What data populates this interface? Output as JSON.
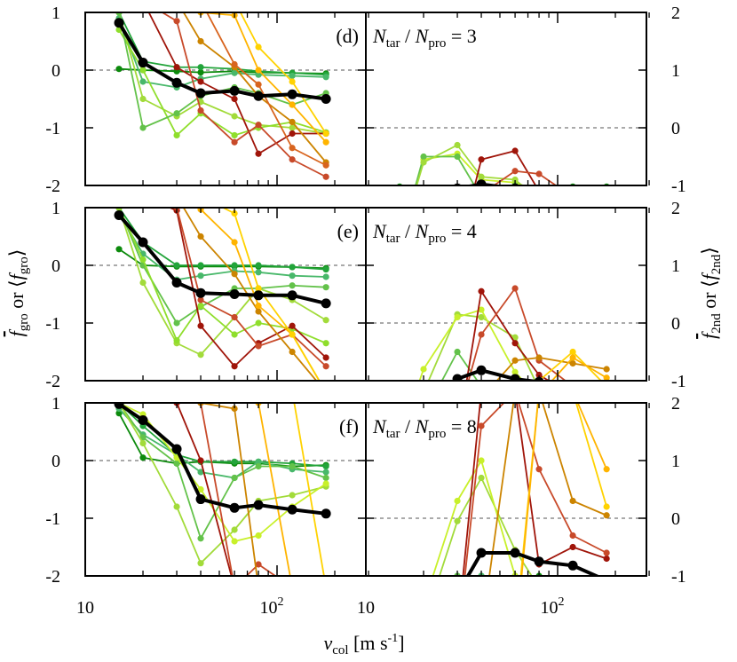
{
  "chart_data": {
    "type": "line",
    "xaxis": {
      "label_main": "v",
      "label_sub": "col",
      "label_unit": "[m s",
      "label_exp": "-1",
      "label_close": "]",
      "scale": "log",
      "range": [
        10,
        300
      ],
      "ticks": [
        {
          "value": 10,
          "label": "10"
        },
        {
          "value": 100,
          "label": "10",
          "exp": "2"
        }
      ]
    },
    "ylabel_left": {
      "f": "f",
      "sub1": "gro",
      "mid": " or ⟨",
      "f2": "f",
      "sub2": "gro",
      "close": "⟩"
    },
    "ylabel_right": {
      "f": "f",
      "sub1": "2nd",
      "mid": " or ⟨",
      "f2": "f",
      "sub2": "2nd",
      "close": "⟩"
    },
    "yleft": {
      "range": [
        -2,
        1
      ],
      "ticks": [
        "1",
        "0",
        "-1",
        "-2"
      ]
    },
    "yright": {
      "range": [
        -1,
        2
      ],
      "ticks": [
        "2",
        "1",
        "0",
        "-1"
      ]
    },
    "velocities": [
      15,
      20,
      30,
      40,
      60,
      80,
      120,
      180
    ],
    "colors": [
      "#0c8a0c",
      "#22a43a",
      "#48b86a",
      "#63c24a",
      "#a2db3a",
      "#8fde2c",
      "#c8f02a",
      "#9b8a2a",
      "#ffb400",
      "#ffd200",
      "#e88a1e",
      "#cc8400",
      "#d8641e",
      "#c84a2a",
      "#a0150a",
      "#b21818"
    ],
    "panels": [
      {
        "letter": "(d)",
        "ratio": "3",
        "eq_N": "N",
        "eq_tar": "tar",
        "eq_sep": " / ",
        "eq_pro": "pro",
        "eq_val": " = ",
        "left_mean": [
          0.82,
          0.13,
          -0.22,
          -0.4,
          -0.36,
          -0.45,
          -0.42,
          -0.5
        ],
        "left_series": [
          {
            "c": 0,
            "v": [
              0.02,
              0.0,
              -0.02,
              -0.04,
              -0.02,
              -0.04,
              -0.05,
              -0.06
            ]
          },
          {
            "c": 1,
            "v": [
              1.0,
              0.15,
              0.05,
              0.05,
              0.02,
              -0.02,
              -0.05,
              -0.08
            ]
          },
          {
            "c": 2,
            "v": [
              0.9,
              -0.2,
              -0.3,
              -0.15,
              -0.05,
              -0.08,
              -0.1,
              -0.12
            ]
          },
          {
            "c": 4,
            "v": [
              1.0,
              -0.5,
              -0.8,
              -0.55,
              -0.8,
              -0.95,
              -1.0,
              -1.1
            ]
          },
          {
            "c": 5,
            "v": [
              0.7,
              0.0,
              -1.13,
              -0.75,
              -1.13,
              -1.0,
              -0.9,
              -1.08
            ]
          },
          {
            "c": 3,
            "v": [
              1.0,
              -1.0,
              -0.75,
              -0.45,
              -0.3,
              -0.4,
              -0.6,
              -0.4
            ]
          },
          {
            "c": 14,
            "v": [
              1.2,
              1.2,
              0.05,
              -0.2,
              -0.5,
              -1.45,
              -1.1,
              -1.1
            ]
          },
          {
            "c": 13,
            "v": [
              1.2,
              1.2,
              0.85,
              -0.7,
              -1.25,
              -0.95,
              -1.55,
              -1.85
            ]
          },
          {
            "c": 11,
            "v": [
              1.2,
              1.2,
              1.2,
              0.5,
              0.05,
              -0.45,
              -0.9,
              -1.6
            ]
          },
          {
            "c": 8,
            "v": [
              1.2,
              1.2,
              1.2,
              1.0,
              0.95,
              0.0,
              -0.6,
              -1.25
            ]
          },
          {
            "c": 9,
            "v": [
              1.2,
              1.2,
              1.2,
              1.2,
              1.2,
              0.4,
              -0.2,
              -1.1
            ]
          },
          {
            "c": 12,
            "v": [
              1.2,
              1.2,
              1.2,
              1.2,
              0.1,
              -0.25,
              -1.35,
              -1.65
            ]
          }
        ],
        "right_mean": [
          -1.82,
          -1.3,
          -1.05,
          -0.98,
          -1.05,
          -1.08,
          -1.13,
          -1.25
        ],
        "right_series": [
          {
            "c": 0,
            "v": [
              -1.02,
              -1.08,
              -1.05,
              -1.02,
              -1.02,
              -1.05,
              -1.02,
              -1.02
            ]
          },
          {
            "c": 2,
            "v": [
              -1.95,
              -1.15,
              -1.1,
              -1.1,
              -1.1,
              -1.12,
              -1.1,
              -1.1
            ]
          },
          {
            "c": 6,
            "v": [
              -2.0,
              -0.55,
              -0.45,
              -0.9,
              -0.95,
              -1.1,
              -1.15,
              -1.2
            ]
          },
          {
            "c": 3,
            "v": [
              -2.0,
              -0.5,
              -0.5,
              -1.2,
              -1.0,
              -1.2,
              -1.3,
              -1.4
            ]
          },
          {
            "c": 4,
            "v": [
              -2.0,
              -0.6,
              -0.3,
              -0.85,
              -0.9,
              -1.25,
              -1.4,
              -1.6
            ]
          },
          {
            "c": 14,
            "v": [
              -2.2,
              -2.2,
              -2.2,
              -0.55,
              -0.4,
              -1.1,
              -1.5,
              -1.55
            ]
          },
          {
            "c": 13,
            "v": [
              -2.2,
              -2.2,
              -1.9,
              -1.15,
              -0.75,
              -0.8,
              -1.2,
              -1.6
            ]
          },
          {
            "c": 11,
            "v": [
              -2.2,
              -2.2,
              -2.0,
              -1.55,
              -1.35,
              -1.1,
              -1.15,
              -1.45
            ]
          },
          {
            "c": 9,
            "v": [
              -2.2,
              -2.2,
              -2.2,
              -2.0,
              -1.55,
              -1.4,
              -1.3,
              -1.55
            ]
          },
          {
            "c": 8,
            "v": [
              -2.2,
              -2.2,
              -2.2,
              -2.2,
              -1.85,
              -1.6,
              -1.45,
              -1.65
            ]
          }
        ]
      },
      {
        "letter": "(e)",
        "ratio": "4",
        "eq_N": "N",
        "eq_tar": "tar",
        "eq_sep": " / ",
        "eq_pro": "pro",
        "eq_val": " = ",
        "left_mean": [
          0.87,
          0.4,
          -0.3,
          -0.48,
          -0.5,
          -0.52,
          -0.52,
          -0.66
        ],
        "left_series": [
          {
            "c": 0,
            "v": [
              0.28,
              0.0,
              -0.02,
              -0.02,
              -0.02,
              -0.02,
              -0.03,
              -0.05
            ]
          },
          {
            "c": 1,
            "v": [
              1.0,
              0.4,
              0.0,
              0.0,
              0.0,
              0.0,
              -0.03,
              -0.07
            ]
          },
          {
            "c": 2,
            "v": [
              0.9,
              0.2,
              -0.25,
              -0.18,
              -0.1,
              -0.12,
              -0.18,
              -0.2
            ]
          },
          {
            "c": 3,
            "v": [
              1.0,
              0.0,
              -1.0,
              -0.72,
              -0.4,
              -0.4,
              -0.35,
              -0.38
            ]
          },
          {
            "c": 4,
            "v": [
              1.0,
              -0.3,
              -1.35,
              -1.55,
              -0.9,
              -0.4,
              -0.6,
              -0.95
            ]
          },
          {
            "c": 5,
            "v": [
              1.0,
              0.1,
              -1.3,
              -0.7,
              -1.2,
              -1.0,
              -1.1,
              -1.35
            ]
          },
          {
            "c": 14,
            "v": [
              1.2,
              1.2,
              0.95,
              -1.05,
              -1.75,
              -1.35,
              -1.05,
              -1.6
            ]
          },
          {
            "c": 13,
            "v": [
              1.2,
              1.2,
              1.0,
              -0.6,
              -0.9,
              -1.4,
              -1.2,
              -1.75
            ]
          },
          {
            "c": 11,
            "v": [
              1.2,
              1.2,
              1.2,
              0.5,
              -0.15,
              -0.8,
              -1.5,
              -2.2
            ]
          },
          {
            "c": 8,
            "v": [
              1.2,
              1.2,
              1.2,
              0.97,
              0.4,
              -0.7,
              -1.2,
              -2.2
            ]
          },
          {
            "c": 9,
            "v": [
              1.2,
              1.2,
              1.2,
              1.2,
              0.9,
              -0.4,
              -1.2,
              -2.2
            ]
          }
        ],
        "right_mean": [
          -1.87,
          -1.45,
          -0.97,
          -0.82,
          -0.97,
          -1.02,
          -1.12,
          -1.17
        ],
        "right_series": [
          {
            "c": 0,
            "v": [
              -1.25,
              -1.15,
              -1.1,
              -1.05,
              -1.05,
              -1.05,
              -1.05,
              -1.1
            ]
          },
          {
            "c": 2,
            "v": [
              -1.9,
              -1.05,
              -1.0,
              -1.05,
              -1.05,
              -1.1,
              -1.12,
              -1.15
            ]
          },
          {
            "c": 4,
            "v": [
              -2.0,
              -1.2,
              0.15,
              0.1,
              -0.25,
              -1.15,
              -1.35,
              -1.35
            ]
          },
          {
            "c": 6,
            "v": [
              -2.0,
              -0.8,
              0.1,
              0.23,
              -0.85,
              -1.3,
              -1.5,
              -1.55
            ]
          },
          {
            "c": 3,
            "v": [
              -2.0,
              -1.6,
              -0.5,
              -1.1,
              -1.0,
              -1.25,
              -1.3,
              -1.4
            ]
          },
          {
            "c": 14,
            "v": [
              -2.2,
              -2.2,
              -2.0,
              0.55,
              -0.35,
              -0.9,
              -1.25,
              -1.5
            ]
          },
          {
            "c": 13,
            "v": [
              -2.2,
              -2.2,
              -1.7,
              -0.2,
              0.6,
              -0.65,
              -1.1,
              -1.3
            ]
          },
          {
            "c": 11,
            "v": [
              -2.2,
              -2.2,
              -2.2,
              -1.3,
              -0.65,
              -0.6,
              -0.7,
              -0.8
            ]
          },
          {
            "c": 9,
            "v": [
              -2.2,
              -2.2,
              -2.2,
              -2.2,
              -1.45,
              -1.0,
              -0.5,
              -1.1
            ]
          },
          {
            "c": 8,
            "v": [
              -2.2,
              -2.2,
              -2.2,
              -2.2,
              -2.0,
              -1.25,
              -0.6,
              -0.95
            ]
          }
        ]
      },
      {
        "letter": "(f)",
        "ratio": "8",
        "eq_N": "N",
        "eq_tar": "tar",
        "eq_sep": " / ",
        "eq_pro": "pro",
        "eq_val": " = ",
        "left_mean": [
          0.98,
          0.7,
          0.2,
          -0.67,
          -0.82,
          -0.77,
          -0.85,
          -0.92
        ],
        "left_series": [
          {
            "c": 0,
            "v": [
              0.82,
              0.05,
              -0.05,
              -0.02,
              -0.05,
              -0.05,
              -0.1,
              -0.08
            ]
          },
          {
            "c": 1,
            "v": [
              1.0,
              0.6,
              0.1,
              -0.02,
              -0.02,
              -0.02,
              -0.05,
              -0.1
            ]
          },
          {
            "c": 2,
            "v": [
              0.9,
              0.45,
              0.1,
              -0.2,
              -0.3,
              -0.02,
              -0.15,
              -0.2
            ]
          },
          {
            "c": 3,
            "v": [
              1.0,
              0.4,
              -0.05,
              -1.35,
              -0.3,
              -0.1,
              -0.1,
              -0.3
            ]
          },
          {
            "c": 4,
            "v": [
              1.0,
              0.3,
              -0.8,
              -1.78,
              -1.2,
              -0.7,
              -0.6,
              -0.45
            ]
          },
          {
            "c": 6,
            "v": [
              1.0,
              0.8,
              0.05,
              -0.5,
              -1.4,
              -1.3,
              -0.8,
              -0.4
            ]
          },
          {
            "c": 14,
            "v": [
              1.2,
              1.2,
              1.0,
              0.0,
              -2.2,
              -2.2,
              -2.2,
              -2.2
            ]
          },
          {
            "c": 13,
            "v": [
              1.2,
              1.2,
              1.2,
              1.0,
              -2.2,
              -1.8,
              -2.2,
              -2.2
            ]
          },
          {
            "c": 11,
            "v": [
              1.2,
              1.2,
              1.2,
              1.0,
              0.9,
              -2.2,
              -2.2,
              -2.2
            ]
          },
          {
            "c": 8,
            "v": [
              1.2,
              1.2,
              1.2,
              1.2,
              1.2,
              1.0,
              -2.2,
              -2.2
            ]
          },
          {
            "c": 9,
            "v": [
              1.2,
              1.2,
              1.2,
              1.2,
              1.2,
              1.2,
              1.2,
              -2.2
            ]
          }
        ],
        "right_mean": [
          -2.0,
          -1.73,
          -1.32,
          -0.6,
          -0.6,
          -0.75,
          -0.82,
          -1.08
        ],
        "right_series": [
          {
            "c": 0,
            "v": [
              -1.8,
              -1.3,
              -1.2,
              -1.0,
              -1.0,
              -1.0,
              -1.05,
              -1.1
            ]
          },
          {
            "c": 2,
            "v": [
              -1.9,
              -1.3,
              -1.0,
              -1.0,
              -1.05,
              -1.1,
              -1.15,
              -1.2
            ]
          },
          {
            "c": 4,
            "v": [
              -2.0,
              -1.85,
              -0.05,
              0.7,
              -0.55,
              -1.2,
              -1.3,
              -1.35
            ]
          },
          {
            "c": 6,
            "v": [
              -2.0,
              -1.5,
              0.3,
              1.0,
              -1.0,
              -1.2,
              -1.5,
              -1.6
            ]
          },
          {
            "c": 3,
            "v": [
              -2.0,
              -1.4,
              -1.0,
              -1.1,
              -1.2,
              -1.3,
              -1.4,
              -1.45
            ]
          },
          {
            "c": 14,
            "v": [
              -2.2,
              -2.2,
              -2.0,
              2.2,
              2.2,
              -0.8,
              -0.5,
              -0.7
            ]
          },
          {
            "c": 13,
            "v": [
              -2.2,
              -2.2,
              -2.2,
              1.6,
              2.2,
              0.85,
              -0.3,
              -0.6
            ]
          },
          {
            "c": 11,
            "v": [
              -2.2,
              -2.2,
              -2.2,
              -2.0,
              2.2,
              2.2,
              0.3,
              0.05
            ]
          },
          {
            "c": 9,
            "v": [
              -2.2,
              -2.2,
              -2.2,
              -2.2,
              -2.0,
              2.2,
              2.2,
              0.2
            ]
          },
          {
            "c": 8,
            "v": [
              -2.2,
              -2.2,
              -2.2,
              -2.2,
              -2.2,
              2.2,
              2.2,
              0.85
            ]
          }
        ]
      }
    ]
  }
}
